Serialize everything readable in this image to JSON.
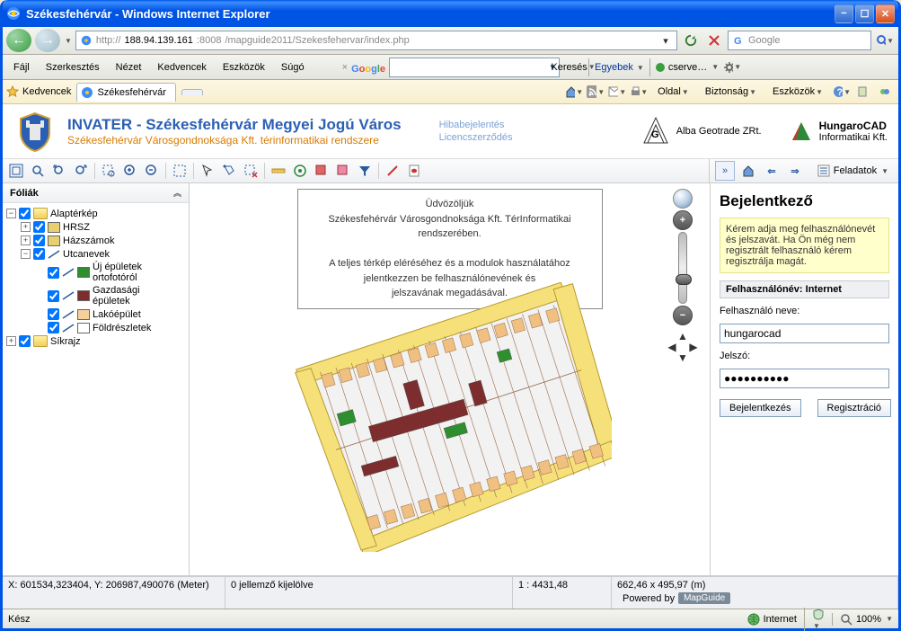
{
  "window": {
    "title": "Székesfehérvár - Windows Internet Explorer"
  },
  "address": {
    "proto": "http://",
    "host": "188.94.139.161",
    "port": ":8008",
    "path": "/mapguide2011/Szekesfehervar/index.php"
  },
  "search_engine": "Google",
  "ie_menu": {
    "file": "Fájl",
    "edit": "Szerkesztés",
    "view": "Nézet",
    "fav": "Kedvencek",
    "tools": "Eszközök",
    "help": "Súgó"
  },
  "goog_bar": {
    "search_label": "Keresés",
    "more_label": "Egyebek",
    "user_label": "cserve…"
  },
  "favbar": {
    "button": "Kedvencek",
    "tab_title": "Székesfehérvár"
  },
  "cmdbar": {
    "page": "Oldal",
    "safety": "Biztonság",
    "tools": "Eszközök"
  },
  "header": {
    "title": "INVATER - Székesfehérvár Megyei Jogú Város",
    "subtitle": "Székesfehérvár Városgondnoksága Kft. térinformatikai rendszere",
    "link1": "Hibabejelentés",
    "link2": "Licencszerződés",
    "sponsor1": "Alba Geotrade ZRt.",
    "sponsor2_b": "HungaroCAD",
    "sponsor2_s": "Informatikai Kft."
  },
  "right_tb": {
    "tasks": "Feladatok"
  },
  "leftpane": {
    "title": "Fóliák"
  },
  "tree": {
    "root1": "Alaptérkép",
    "hrsz": "HRSZ",
    "hazsz": "Házszámok",
    "utcanev": "Utcanevek",
    "ujep_l1": "Új épületek",
    "ujep_l2": "ortofotóról",
    "gazd_l1": "Gazdasági",
    "gazd_l2": "épületek",
    "lako": "Lakóépület",
    "foldr": "Földrészletek",
    "root2": "Síkrajz"
  },
  "layer_colors": {
    "hrsz": "#e8d070",
    "hazsz": "#e8d070",
    "utcanev": "#ffffff",
    "ujep": "#2f8f2f",
    "gazd": "#7d2d2d",
    "lako": "#f6cf9b",
    "foldr": "#ffffff"
  },
  "welcome": {
    "l1": "Üdvözöljük",
    "l2": "Székesfehérvár Városgondnoksága Kft. TérInformatikai rendszerében.",
    "l3": "A teljes térkép eléréséhez és a modulok használatához",
    "l4": "jelentkezzen be felhasználónevének és",
    "l5": "jelszavának megadásával."
  },
  "login": {
    "title": "Bejelentkező",
    "hint": "Kérem adja meg felhasználónevét és jelszavát. Ha Ön még nem regisztrált felhasználó kérem regisztrálja magát.",
    "header": "Felhasználónév: Internet",
    "user_label": "Felhasználó neve:",
    "user_value": "hungarocad",
    "pass_label": "Jelszó:",
    "pass_value": "●●●●●●●●●●",
    "btn_login": "Bejelentkezés",
    "btn_reg": "Regisztráció"
  },
  "status": {
    "coords": "X: 601534,323404, Y: 206987,490076 (Meter)",
    "sel": "0 jellemző kijelölve",
    "scale": "1 : 4431,48",
    "size": "662,46 x 495,97 (m)",
    "powered": "Powered by",
    "mg": "MapGuide"
  },
  "ie_status": {
    "ready": "Kész",
    "zone": "Internet",
    "zoom": "100%"
  },
  "map": {
    "bg": "#ffffff",
    "road": "#f5e07a",
    "road_stroke": "#b79a2e",
    "parcel_fill": "#f2f2f2",
    "parcel_stroke": "#9a6a4a",
    "bldg_res": "#f0c080",
    "bldg_ind": "#7d2d2d",
    "bldg_new": "#2f8f2f",
    "outline": "#555555"
  }
}
